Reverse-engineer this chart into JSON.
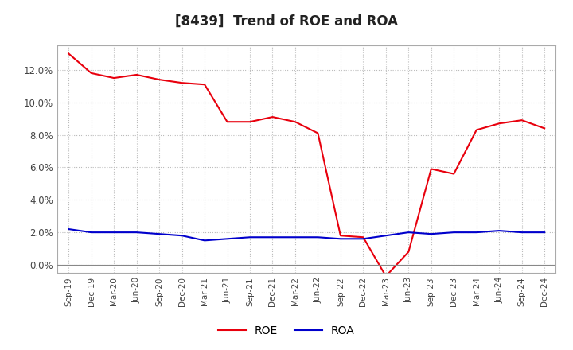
{
  "title": "[8439]  Trend of ROE and ROA",
  "x_labels": [
    "Sep-19",
    "Dec-19",
    "Mar-20",
    "Jun-20",
    "Sep-20",
    "Dec-20",
    "Mar-21",
    "Jun-21",
    "Sep-21",
    "Dec-21",
    "Mar-22",
    "Jun-22",
    "Sep-22",
    "Dec-22",
    "Mar-23",
    "Jun-23",
    "Sep-23",
    "Dec-23",
    "Mar-24",
    "Jun-24",
    "Sep-24",
    "Dec-24"
  ],
  "roe": [
    13.0,
    11.8,
    11.5,
    11.7,
    11.4,
    11.2,
    11.1,
    8.8,
    8.8,
    9.1,
    8.8,
    8.1,
    1.8,
    1.7,
    -0.7,
    0.8,
    5.9,
    5.6,
    8.3,
    8.7,
    8.9,
    8.4
  ],
  "roa": [
    2.2,
    2.0,
    2.0,
    2.0,
    1.9,
    1.8,
    1.5,
    1.6,
    1.7,
    1.7,
    1.7,
    1.7,
    1.6,
    1.6,
    1.8,
    2.0,
    1.9,
    2.0,
    2.0,
    2.1,
    2.0,
    2.0
  ],
  "roe_color": "#e8000d",
  "roa_color": "#0000cc",
  "ylim_min": -0.5,
  "ylim_max": 13.5,
  "yticks": [
    0.0,
    2.0,
    4.0,
    6.0,
    8.0,
    10.0,
    12.0
  ],
  "background_color": "#ffffff",
  "plot_bg_color": "#ffffff",
  "grid_color": "#bbbbbb",
  "title_fontsize": 12,
  "legend_labels": [
    "ROE",
    "ROA"
  ]
}
